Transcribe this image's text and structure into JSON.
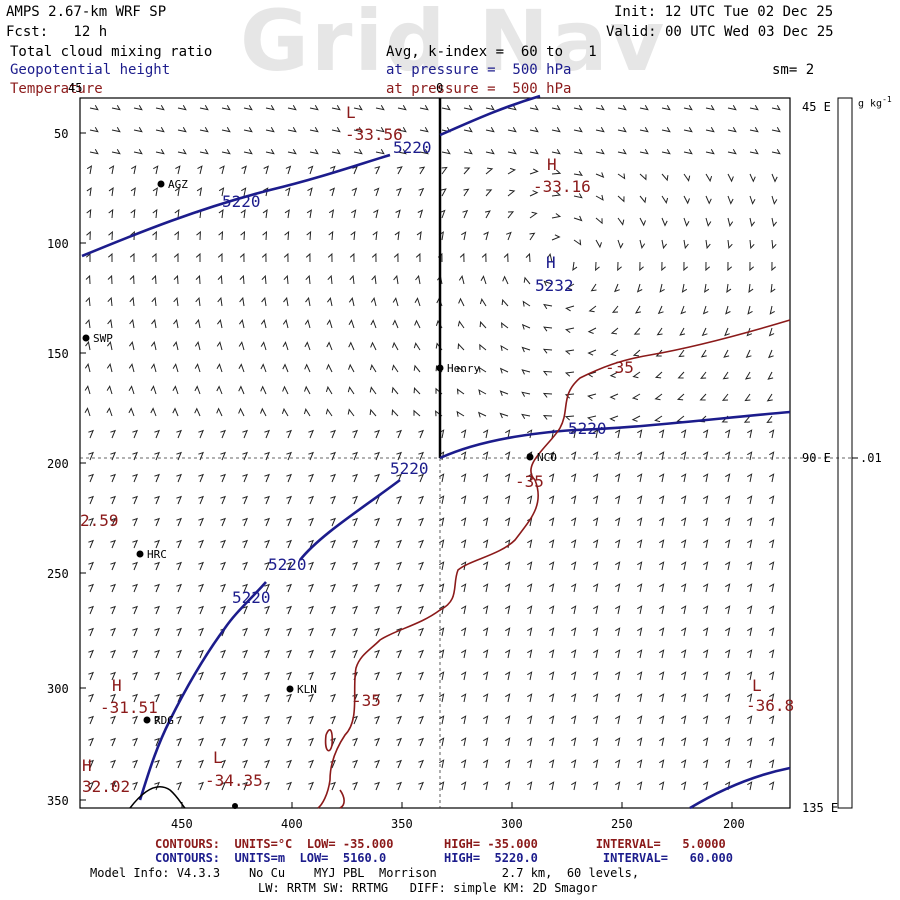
{
  "watermark": "Grid Nav",
  "header": {
    "model_title": "AMPS 2.67-km WRF SP",
    "forecast": "Fcst:   12 h",
    "init": "Init: 12 UTC Tue 02 Dec 25",
    "valid": "Valid: 00 UTC Wed 03 Dec 25",
    "field1": "Total cloud mixing ratio",
    "field1_detail": "Avg, k-index =  60 to   1",
    "field2": "Geopotential height",
    "field2_detail": "at pressure =  500 hPa",
    "field3": "Temperature",
    "field3_detail": "at pressure =  500 hPa",
    "smoothing": "sm= 2",
    "colorbar_units": "g kg",
    "colorbar_units_exp": "-1"
  },
  "axes": {
    "x_ticks": [
      "450",
      "400",
      "350",
      "300",
      "250",
      "200"
    ],
    "y_ticks": [
      "50",
      "100",
      "150",
      "200",
      "250",
      "300",
      "350"
    ],
    "corner_top_left": "45",
    "top_center": "0",
    "right_labels": [
      "45 E",
      "90 E",
      "135 E"
    ],
    "colorbar_value": ".01"
  },
  "stations": [
    {
      "name": "AGZ"
    },
    {
      "name": "SWP"
    },
    {
      "name": "Henry"
    },
    {
      "name": "NCO"
    },
    {
      "name": "HRC"
    },
    {
      "name": "KLN"
    },
    {
      "name": "RDG"
    }
  ],
  "height_labels": [
    "5220",
    "5220",
    "5232",
    "5220",
    "5220",
    "5220",
    "5220"
  ],
  "temp_labels": [
    "-33.56",
    "-33.16",
    "-35",
    "-35",
    "-35",
    "2.59",
    "-31.51",
    "32.02",
    "-34.35",
    "-36.8"
  ],
  "extrema_labels": [
    "L",
    "H",
    "H",
    "H",
    "H",
    "L",
    "L"
  ],
  "footer": {
    "temp_contours": "CONTOURS:  UNITS=°C  LOW= -35.000       HIGH= -35.000        INTERVAL=   5.0000",
    "height_contours": "CONTOURS:  UNITS=m  LOW=  5160.0        HIGH=  5220.0         INTERVAL=   60.000",
    "model_info_1": "Model Info: V4.3.3    No Cu    MYJ PBL  Morrison         2.7 km,  60 levels,",
    "model_info_2": "LW: RRTM SW: RRTMG   DIFF: simple KM: 2D Smagor"
  },
  "colors": {
    "height_contour": "#1c1c8c",
    "temp_contour": "#8b1a1a"
  }
}
